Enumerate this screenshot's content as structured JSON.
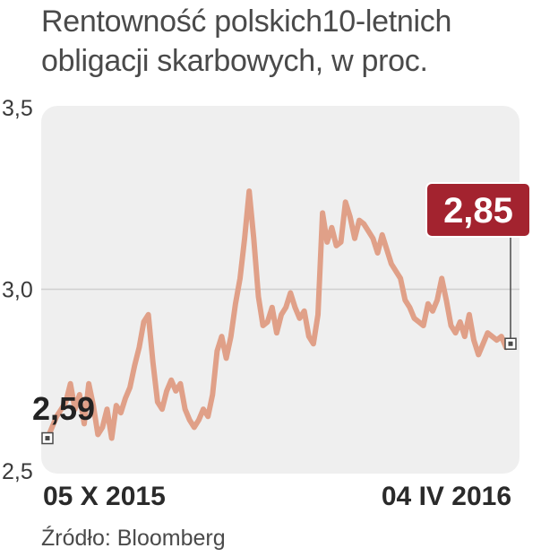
{
  "title": "Rentowność polskich10-letnich obligacji skarbowych, w proc.",
  "source": "Źródło: Bloomberg",
  "colors": {
    "line": "#e0a088",
    "plot_bg": "#efefef",
    "grid": "#cfcfcf",
    "callout_bg": "#a3232f",
    "callout_text": "#ffffff",
    "marker": "#4a4a4a",
    "text": "#3a3a3a"
  },
  "chart_data": {
    "type": "line",
    "title": "Rentowność polskich10-letnich obligacji skarbowych, w proc.",
    "xlabel": "",
    "ylabel": "",
    "ylim": [
      2.5,
      3.5
    ],
    "y_ticks": [
      2.5,
      3.0,
      3.5
    ],
    "y_tick_labels": [
      "2,5",
      "3,0",
      "3,5"
    ],
    "x_tick_labels": [
      "05 X 2015",
      "04 IV 2016"
    ],
    "grid": true,
    "start_label": "2,59",
    "end_label": "2,85",
    "start_value": 2.59,
    "end_value": 2.85,
    "series": [
      {
        "values": [
          2.59,
          2.62,
          2.65,
          2.67,
          2.69,
          2.74,
          2.67,
          2.71,
          2.63,
          2.74,
          2.68,
          2.6,
          2.62,
          2.67,
          2.59,
          2.68,
          2.66,
          2.7,
          2.73,
          2.79,
          2.84,
          2.91,
          2.93,
          2.8,
          2.69,
          2.67,
          2.72,
          2.75,
          2.72,
          2.74,
          2.67,
          2.64,
          2.62,
          2.64,
          2.67,
          2.65,
          2.71,
          2.83,
          2.87,
          2.81,
          2.87,
          2.96,
          3.03,
          3.14,
          3.27,
          3.14,
          2.98,
          2.9,
          2.91,
          2.95,
          2.88,
          2.93,
          2.95,
          2.99,
          2.95,
          2.92,
          2.94,
          2.87,
          2.85,
          2.93,
          3.21,
          3.13,
          3.17,
          3.12,
          3.13,
          3.24,
          3.2,
          3.14,
          3.19,
          3.18,
          3.16,
          3.14,
          3.1,
          3.15,
          3.11,
          3.07,
          3.05,
          3.03,
          2.97,
          2.95,
          2.92,
          2.91,
          2.9,
          2.96,
          2.94,
          2.97,
          3.03,
          2.97,
          2.9,
          2.88,
          2.91,
          2.87,
          2.93,
          2.86,
          2.82,
          2.85,
          2.88,
          2.87,
          2.86,
          2.87,
          2.84,
          2.85
        ]
      }
    ]
  }
}
